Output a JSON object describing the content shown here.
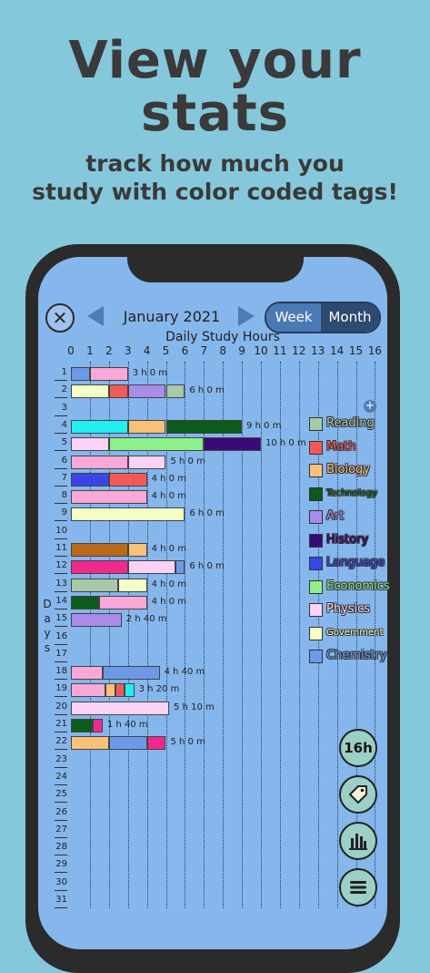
{
  "promo": {
    "headline_line1": "View your",
    "headline_line2": "stats",
    "subline_line1": "track how much you",
    "subline_line2": "study with color coded tags!"
  },
  "header": {
    "month_label": "January 2021",
    "toggle_week": "Week",
    "toggle_month": "Month"
  },
  "fab": {
    "hours_label": "16h"
  },
  "tags": [
    {
      "name": "Reading",
      "color": "#a8c8a8"
    },
    {
      "name": "Math",
      "color": "#f25a5a"
    },
    {
      "name": "Biology",
      "color": "#f9c07a"
    },
    {
      "name": "Technology",
      "color": "#0b5b1a"
    },
    {
      "name": "Art",
      "color": "#a98be8"
    },
    {
      "name": "History",
      "color": "#3a0a78"
    },
    {
      "name": "Language",
      "color": "#3c46e8"
    },
    {
      "name": "Economics",
      "color": "#8ef08a"
    },
    {
      "name": "Physics",
      "color": "#fad2f5"
    },
    {
      "name": "Government",
      "color": "#f3ffc4"
    },
    {
      "name": "Chemistry",
      "color": "#6c9ae8"
    }
  ],
  "chart_data": {
    "type": "bar",
    "orientation": "horizontal-stacked",
    "title": "Daily Study Hours",
    "xlabel": "",
    "ylabel": "Days",
    "xlim": [
      0,
      16
    ],
    "x_ticks": [
      "0",
      "1",
      "2",
      "3",
      "4",
      "5",
      "6",
      "7",
      "8",
      "9",
      "10",
      "11",
      "12",
      "13",
      "14",
      "15",
      "16"
    ],
    "categories": [
      "1",
      "2",
      "3",
      "4",
      "5",
      "6",
      "7",
      "8",
      "9",
      "10",
      "11",
      "12",
      "13",
      "14",
      "15",
      "16",
      "17",
      "18",
      "19",
      "20",
      "21",
      "22",
      "23",
      "24",
      "25",
      "26",
      "27",
      "28",
      "29",
      "30",
      "31"
    ],
    "days": [
      {
        "day": "1",
        "total": "3 h 0 m",
        "segments": [
          {
            "color": "#6c9ae8",
            "hours": 1
          },
          {
            "color": "#f9a8d8",
            "hours": 2
          }
        ]
      },
      {
        "day": "2",
        "total": "6 h 0 m",
        "segments": [
          {
            "color": "#f3ffc4",
            "hours": 2
          },
          {
            "color": "#f25a5a",
            "hours": 1
          },
          {
            "color": "#a98be8",
            "hours": 2
          },
          {
            "color": "#a8c8a8",
            "hours": 1
          }
        ]
      },
      {
        "day": "3",
        "total": "",
        "segments": []
      },
      {
        "day": "4",
        "total": "9 h 0 m",
        "segments": [
          {
            "color": "#22f0f0",
            "hours": 3
          },
          {
            "color": "#f9c07a",
            "hours": 2
          },
          {
            "color": "#0b5b1a",
            "hours": 4
          }
        ]
      },
      {
        "day": "5",
        "total": "10 h 0 m",
        "segments": [
          {
            "color": "#fad2f5",
            "hours": 2
          },
          {
            "color": "#8ef08a",
            "hours": 5
          },
          {
            "color": "#3a0a78",
            "hours": 3
          }
        ]
      },
      {
        "day": "6",
        "total": "5 h 0 m",
        "segments": [
          {
            "color": "#f9a8d8",
            "hours": 3
          },
          {
            "color": "#fad2f5",
            "hours": 2
          }
        ]
      },
      {
        "day": "7",
        "total": "4 h 0 m",
        "segments": [
          {
            "color": "#3c46e8",
            "hours": 2
          },
          {
            "color": "#f25a5a",
            "hours": 2
          }
        ]
      },
      {
        "day": "8",
        "total": "4 h 0 m",
        "segments": [
          {
            "color": "#f9a8d8",
            "hours": 4
          }
        ]
      },
      {
        "day": "9",
        "total": "6 h 0 m",
        "segments": [
          {
            "color": "#f3ffc4",
            "hours": 6
          }
        ]
      },
      {
        "day": "10",
        "total": "",
        "segments": []
      },
      {
        "day": "11",
        "total": "4 h 0 m",
        "segments": [
          {
            "color": "#b86a1a",
            "hours": 3
          },
          {
            "color": "#f9c07a",
            "hours": 1
          }
        ]
      },
      {
        "day": "12",
        "total": "6 h 0 m",
        "segments": [
          {
            "color": "#f02a8a",
            "hours": 3
          },
          {
            "color": "#fad2f5",
            "hours": 2.5
          },
          {
            "color": "#6c9ae8",
            "hours": 0.5
          }
        ]
      },
      {
        "day": "13",
        "total": "4 h 0 m",
        "segments": [
          {
            "color": "#a8c8a8",
            "hours": 2.5
          },
          {
            "color": "#f3ffc4",
            "hours": 1.5
          }
        ]
      },
      {
        "day": "14",
        "total": "4 h 0 m",
        "segments": [
          {
            "color": "#0b5b1a",
            "hours": 1.5
          },
          {
            "color": "#f9a8d8",
            "hours": 2.5
          }
        ]
      },
      {
        "day": "15",
        "total": "2 h 40 m",
        "segments": [
          {
            "color": "#a98be8",
            "hours": 2.67
          }
        ]
      },
      {
        "day": "16",
        "total": "",
        "segments": []
      },
      {
        "day": "17",
        "total": "",
        "segments": []
      },
      {
        "day": "18",
        "total": "4 h 40 m",
        "segments": [
          {
            "color": "#f9a8d8",
            "hours": 1.67
          },
          {
            "color": "#6c9ae8",
            "hours": 3
          }
        ]
      },
      {
        "day": "19",
        "total": "3 h 20 m",
        "segments": [
          {
            "color": "#f9a8d8",
            "hours": 1.83
          },
          {
            "color": "#f9c07a",
            "hours": 0.5
          },
          {
            "color": "#f25a5a",
            "hours": 0.5
          },
          {
            "color": "#22f0f0",
            "hours": 0.5
          }
        ]
      },
      {
        "day": "20",
        "total": "5 h 10 m",
        "segments": [
          {
            "color": "#fad2f5",
            "hours": 5.17
          }
        ]
      },
      {
        "day": "21",
        "total": "1 h 40 m",
        "segments": [
          {
            "color": "#0b5b1a",
            "hours": 1.17
          },
          {
            "color": "#f02a8a",
            "hours": 0.5
          }
        ]
      },
      {
        "day": "22",
        "total": "5 h 0 m",
        "segments": [
          {
            "color": "#f9c07a",
            "hours": 2
          },
          {
            "color": "#6c9ae8",
            "hours": 2
          },
          {
            "color": "#f02a8a",
            "hours": 1
          }
        ]
      },
      {
        "day": "23",
        "total": "",
        "segments": []
      },
      {
        "day": "24",
        "total": "",
        "segments": []
      },
      {
        "day": "25",
        "total": "",
        "segments": []
      },
      {
        "day": "26",
        "total": "",
        "segments": []
      },
      {
        "day": "27",
        "total": "",
        "segments": []
      },
      {
        "day": "28",
        "total": "",
        "segments": []
      },
      {
        "day": "29",
        "total": "",
        "segments": []
      },
      {
        "day": "30",
        "total": "",
        "segments": []
      },
      {
        "day": "31",
        "total": "",
        "segments": []
      }
    ],
    "grid": true
  }
}
